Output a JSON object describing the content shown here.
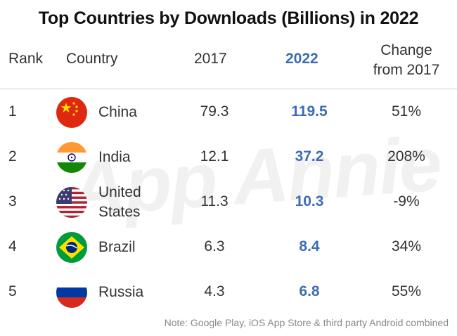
{
  "title": "Top Countries by Downloads (Billions) in 2022",
  "watermark": "App Annie",
  "headers": {
    "rank": "Rank",
    "country": "Country",
    "y2017": "2017",
    "y2022": "2022",
    "change_line1": "Change",
    "change_line2": "from 2017"
  },
  "chart_data": {
    "type": "table",
    "title": "Top Countries by Downloads (Billions) in 2022",
    "columns": [
      "Rank",
      "Country",
      "2017",
      "2022",
      "Change from 2017"
    ],
    "rows": [
      {
        "rank": "1",
        "country": "China",
        "country_line2": "",
        "v2017": "79.3",
        "v2022": "119.5",
        "change": "51%",
        "flag": "china-flag"
      },
      {
        "rank": "2",
        "country": "India",
        "country_line2": "",
        "v2017": "12.1",
        "v2022": "37.2",
        "change": "208%",
        "flag": "india-flag"
      },
      {
        "rank": "3",
        "country": "United",
        "country_line2": "States",
        "v2017": "11.3",
        "v2022": "10.3",
        "change": "-9%",
        "flag": "usa-flag"
      },
      {
        "rank": "4",
        "country": "Brazil",
        "country_line2": "",
        "v2017": "6.3",
        "v2022": "8.4",
        "change": "34%",
        "flag": "brazil-flag"
      },
      {
        "rank": "5",
        "country": "Russia",
        "country_line2": "",
        "v2017": "4.3",
        "v2022": "6.8",
        "change": "55%",
        "flag": "russia-flag"
      }
    ]
  },
  "colors": {
    "accent": "#3d6cb3",
    "text": "#333333",
    "note": "#888888"
  },
  "note": "Note: Google Play, iOS App Store & third party Android combined"
}
